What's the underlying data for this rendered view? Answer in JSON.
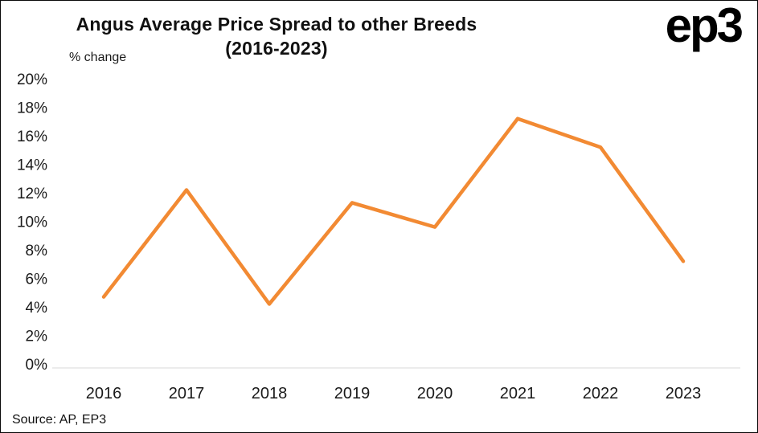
{
  "page": {
    "title_line1": "Angus Average Price Spread to other Breeds",
    "title_line2": "(2016-2023)",
    "logo": "ep3",
    "source": "Source: AP, EP3"
  },
  "chart_data": {
    "type": "line",
    "title": "Angus Average Price Spread to other Breeds (2016-2023)",
    "ylabel": "% change",
    "xlabel": "",
    "categories": [
      "2016",
      "2017",
      "2018",
      "2019",
      "2020",
      "2021",
      "2022",
      "2023"
    ],
    "values": [
      4.7,
      12.2,
      4.2,
      11.3,
      9.6,
      17.2,
      15.2,
      7.2
    ],
    "ylim": [
      0,
      20
    ],
    "ytick_step": 2,
    "ytick_suffix": "%",
    "grid": false,
    "legend_position": "none",
    "line_color": "#F28A33",
    "axis_color": "#d9d9d9",
    "text_color": "#1a1a1a"
  }
}
